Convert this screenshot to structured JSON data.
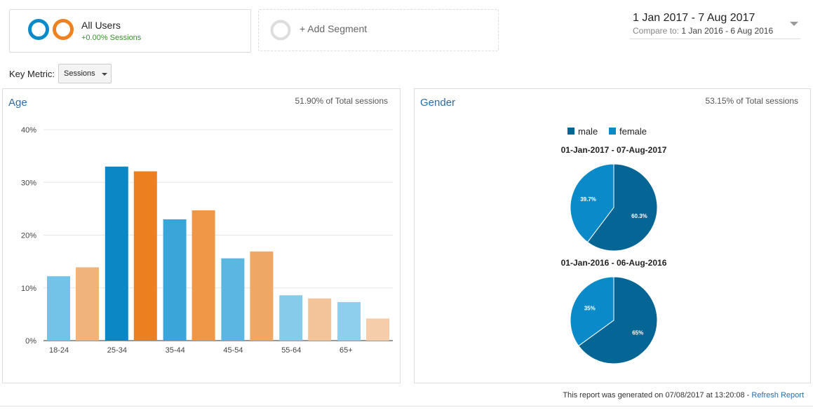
{
  "segment": {
    "title": "All Users",
    "subtitle": "+0.00% Sessions",
    "ring_colors": [
      "#0a8ac8",
      "#ef8121"
    ]
  },
  "add_segment": {
    "label": "+ Add Segment",
    "ring_color": "#dddddd"
  },
  "date_range": {
    "main": "1 Jan 2017 - 7 Aug 2017",
    "compare_label": "Compare to:",
    "compare_value": "1 Jan 2016 - 6 Aug 2016"
  },
  "key_metric": {
    "label": "Key Metric:",
    "selected": "Sessions"
  },
  "age_panel": {
    "title": "Age",
    "pct_label": "51.90% of Total sessions"
  },
  "gender_panel": {
    "title": "Gender",
    "pct_label": "53.15% of Total sessions"
  },
  "footer": {
    "text": "This report was generated on 07/08/2017 at 13:20:08 - ",
    "link": "Refresh Report"
  },
  "chart_data": [
    {
      "type": "bar",
      "title": "",
      "categories": [
        "18-24",
        "25-34",
        "35-44",
        "45-54",
        "55-64",
        "65+"
      ],
      "series": [
        {
          "name": "1 Jan 2017 - 7 Aug 2017",
          "values": [
            12.2,
            33.0,
            23.0,
            15.6,
            8.6,
            7.3
          ]
        },
        {
          "name": "1 Jan 2016 - 6 Aug 2016",
          "values": [
            13.9,
            32.1,
            24.7,
            16.9,
            8.0,
            4.2
          ]
        }
      ],
      "bar_colors": [
        [
          "#73c3e8",
          "#f0b37c"
        ],
        [
          "#0a88c6",
          "#ec7f1f"
        ],
        [
          "#38a6d8",
          "#ef9746"
        ],
        [
          "#5ab7e2",
          "#efa766"
        ],
        [
          "#87cbeb",
          "#f3c39a"
        ],
        [
          "#8ecfee",
          "#f5cdaa"
        ]
      ],
      "y_ticks": [
        "0%",
        "10%",
        "20%",
        "30%",
        "40%"
      ],
      "ylim": [
        0,
        40
      ],
      "grid": true,
      "xlabel": "",
      "ylabel": ""
    },
    {
      "type": "pie",
      "legend": [
        "male",
        "female"
      ],
      "colors": [
        "#056594",
        "#0a8ac8"
      ],
      "pies": [
        {
          "title": "01-Jan-2017 - 07-Aug-2017",
          "values": [
            60.3,
            39.7
          ],
          "labels": [
            "60.3%",
            "39.7%"
          ]
        },
        {
          "title": "01-Jan-2016 - 06-Aug-2016",
          "values": [
            65,
            35
          ],
          "labels": [
            "65%",
            "35%"
          ]
        }
      ]
    }
  ]
}
